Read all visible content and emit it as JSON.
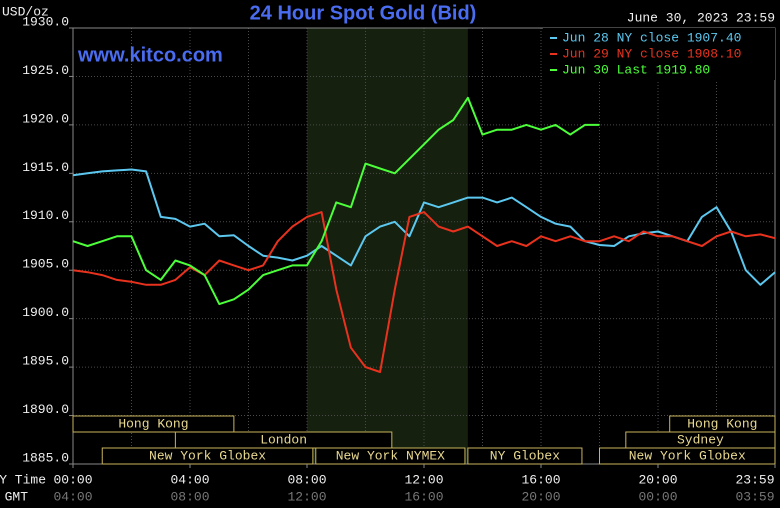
{
  "chart_data": {
    "type": "line",
    "title": "24 Hour Spot Gold (Bid)",
    "unit_label": "USD/oz",
    "date_label": "June 30, 2023 23:59",
    "watermark": "www.kitco.com",
    "time_row_labels": [
      "NY Time",
      "GMT"
    ],
    "x": [
      0,
      0.5,
      1,
      1.5,
      2,
      2.5,
      3,
      3.5,
      4,
      4.5,
      5,
      5.5,
      6,
      6.5,
      7,
      7.5,
      8,
      8.5,
      9,
      9.5,
      10,
      10.5,
      11,
      11.5,
      12,
      12.5,
      13,
      13.5,
      14,
      14.5,
      15,
      15.5,
      16,
      16.5,
      17,
      17.5,
      18,
      18.5,
      19,
      19.5,
      20,
      20.5,
      21,
      21.5,
      22,
      22.5,
      23,
      23.5,
      24
    ],
    "xlim": [
      0,
      24
    ],
    "xticks": [
      {
        "value": 0,
        "label": "00:00"
      },
      {
        "value": 4,
        "label": "04:00"
      },
      {
        "value": 8,
        "label": "08:00"
      },
      {
        "value": 12,
        "label": "12:00"
      },
      {
        "value": 16,
        "label": "16:00"
      },
      {
        "value": 20,
        "label": "20:00"
      },
      {
        "value": 24,
        "label": "23:59"
      }
    ],
    "gmt_labels": [
      "04:00",
      "08:00",
      "12:00",
      "16:00",
      "20:00",
      "00:00",
      "03:59"
    ],
    "x_grid": [
      0,
      2,
      4,
      6,
      8,
      10,
      12,
      14,
      16,
      18,
      20,
      22,
      24
    ],
    "ylim": [
      1885,
      1930
    ],
    "yticks": [
      {
        "value": 1885,
        "label": "1885.0"
      },
      {
        "value": 1890,
        "label": "1890.0"
      },
      {
        "value": 1895,
        "label": "1895.0"
      },
      {
        "value": 1900,
        "label": "1900.0"
      },
      {
        "value": 1905,
        "label": "1905.0"
      },
      {
        "value": 1910,
        "label": "1910.0"
      },
      {
        "value": 1915,
        "label": "1915.0"
      },
      {
        "value": 1920,
        "label": "1920.0"
      },
      {
        "value": 1925,
        "label": "1925.0"
      },
      {
        "value": 1930,
        "label": "1930.0"
      }
    ],
    "grid": true,
    "shade": [
      8,
      13.5
    ],
    "legend": "top-right",
    "series": [
      {
        "name": "Jun 28 NY close 1907.40",
        "color": "#5cc8f0",
        "values": [
          1914.8,
          1915,
          1915.2,
          1915.3,
          1915.4,
          1915.2,
          1910.5,
          1910.3,
          1909.5,
          1909.8,
          1908.5,
          1908.6,
          1907.5,
          1906.5,
          1906.3,
          1906,
          1906.5,
          1907.5,
          1906.5,
          1905.5,
          1908.5,
          1909.5,
          1910,
          1908.5,
          1912,
          1911.5,
          1912,
          1912.5,
          1912.5,
          1912,
          1912.5,
          1911.5,
          1910.5,
          1909.8,
          1909.5,
          1908,
          1907.6,
          1907.5,
          1908.5,
          1908.8,
          1909,
          1908.5,
          1908,
          1910.5,
          1911.5,
          1909,
          1905,
          1903.5,
          1904.8
        ]
      },
      {
        "name": "Jun 29 NY close 1908.10",
        "color": "#e8321e",
        "values": [
          1905,
          1904.8,
          1904.5,
          1904,
          1903.8,
          1903.5,
          1903.5,
          1904,
          1905.3,
          1904.5,
          1906,
          1905.5,
          1905,
          1905.5,
          1908,
          1909.5,
          1910.5,
          1911,
          1903,
          1897,
          1895,
          1894.5,
          1903,
          1910.5,
          1911,
          1909.5,
          1909,
          1909.5,
          1908.5,
          1907.5,
          1908,
          1907.5,
          1908.5,
          1908,
          1908.5,
          1908,
          1908,
          1908.5,
          1908,
          1909,
          1908.5,
          1908.5,
          1908,
          1907.5,
          1908.5,
          1909,
          1908.5,
          1908.7,
          1908.3
        ]
      },
      {
        "name": "Jun 30 Last 1919.80",
        "color": "#4cff3a",
        "values": [
          1908,
          1907.5,
          1908,
          1908.5,
          1908.5,
          1905,
          1904,
          1906,
          1905.5,
          1904.5,
          1901.5,
          1902,
          1903,
          1904.5,
          1905,
          1905.5,
          1905.5,
          1908,
          1912,
          1911.5,
          1916,
          1915.5,
          1915,
          1916.5,
          1918,
          1919.5,
          1920.5,
          1922.8,
          1919,
          1919.5,
          1919.5,
          1920,
          1919.5,
          1920,
          1919,
          1920,
          1920,
          null,
          null,
          null,
          null,
          null,
          null,
          null,
          null,
          null,
          null,
          null,
          null
        ]
      }
    ],
    "sessions": [
      {
        "label": "Hong Kong",
        "start": 0,
        "end": 5.5,
        "row": 0
      },
      {
        "label": "Hong Kong",
        "start": 20.4,
        "end": 24,
        "row": 0
      },
      {
        "label": "London",
        "start": 3.5,
        "end": 10.9,
        "row": 1
      },
      {
        "label": "Sydney",
        "start": 18.9,
        "end": 24,
        "row": 1
      },
      {
        "label": "New York Globex",
        "start": 1,
        "end": 8.2,
        "row": 2
      },
      {
        "label": "New York NYMEX",
        "start": 8.3,
        "end": 13.4,
        "row": 2
      },
      {
        "label": "NY Globex",
        "start": 13.5,
        "end": 17.4,
        "row": 2
      },
      {
        "label": "New York Globex",
        "start": 18,
        "end": 24,
        "row": 2
      }
    ]
  }
}
